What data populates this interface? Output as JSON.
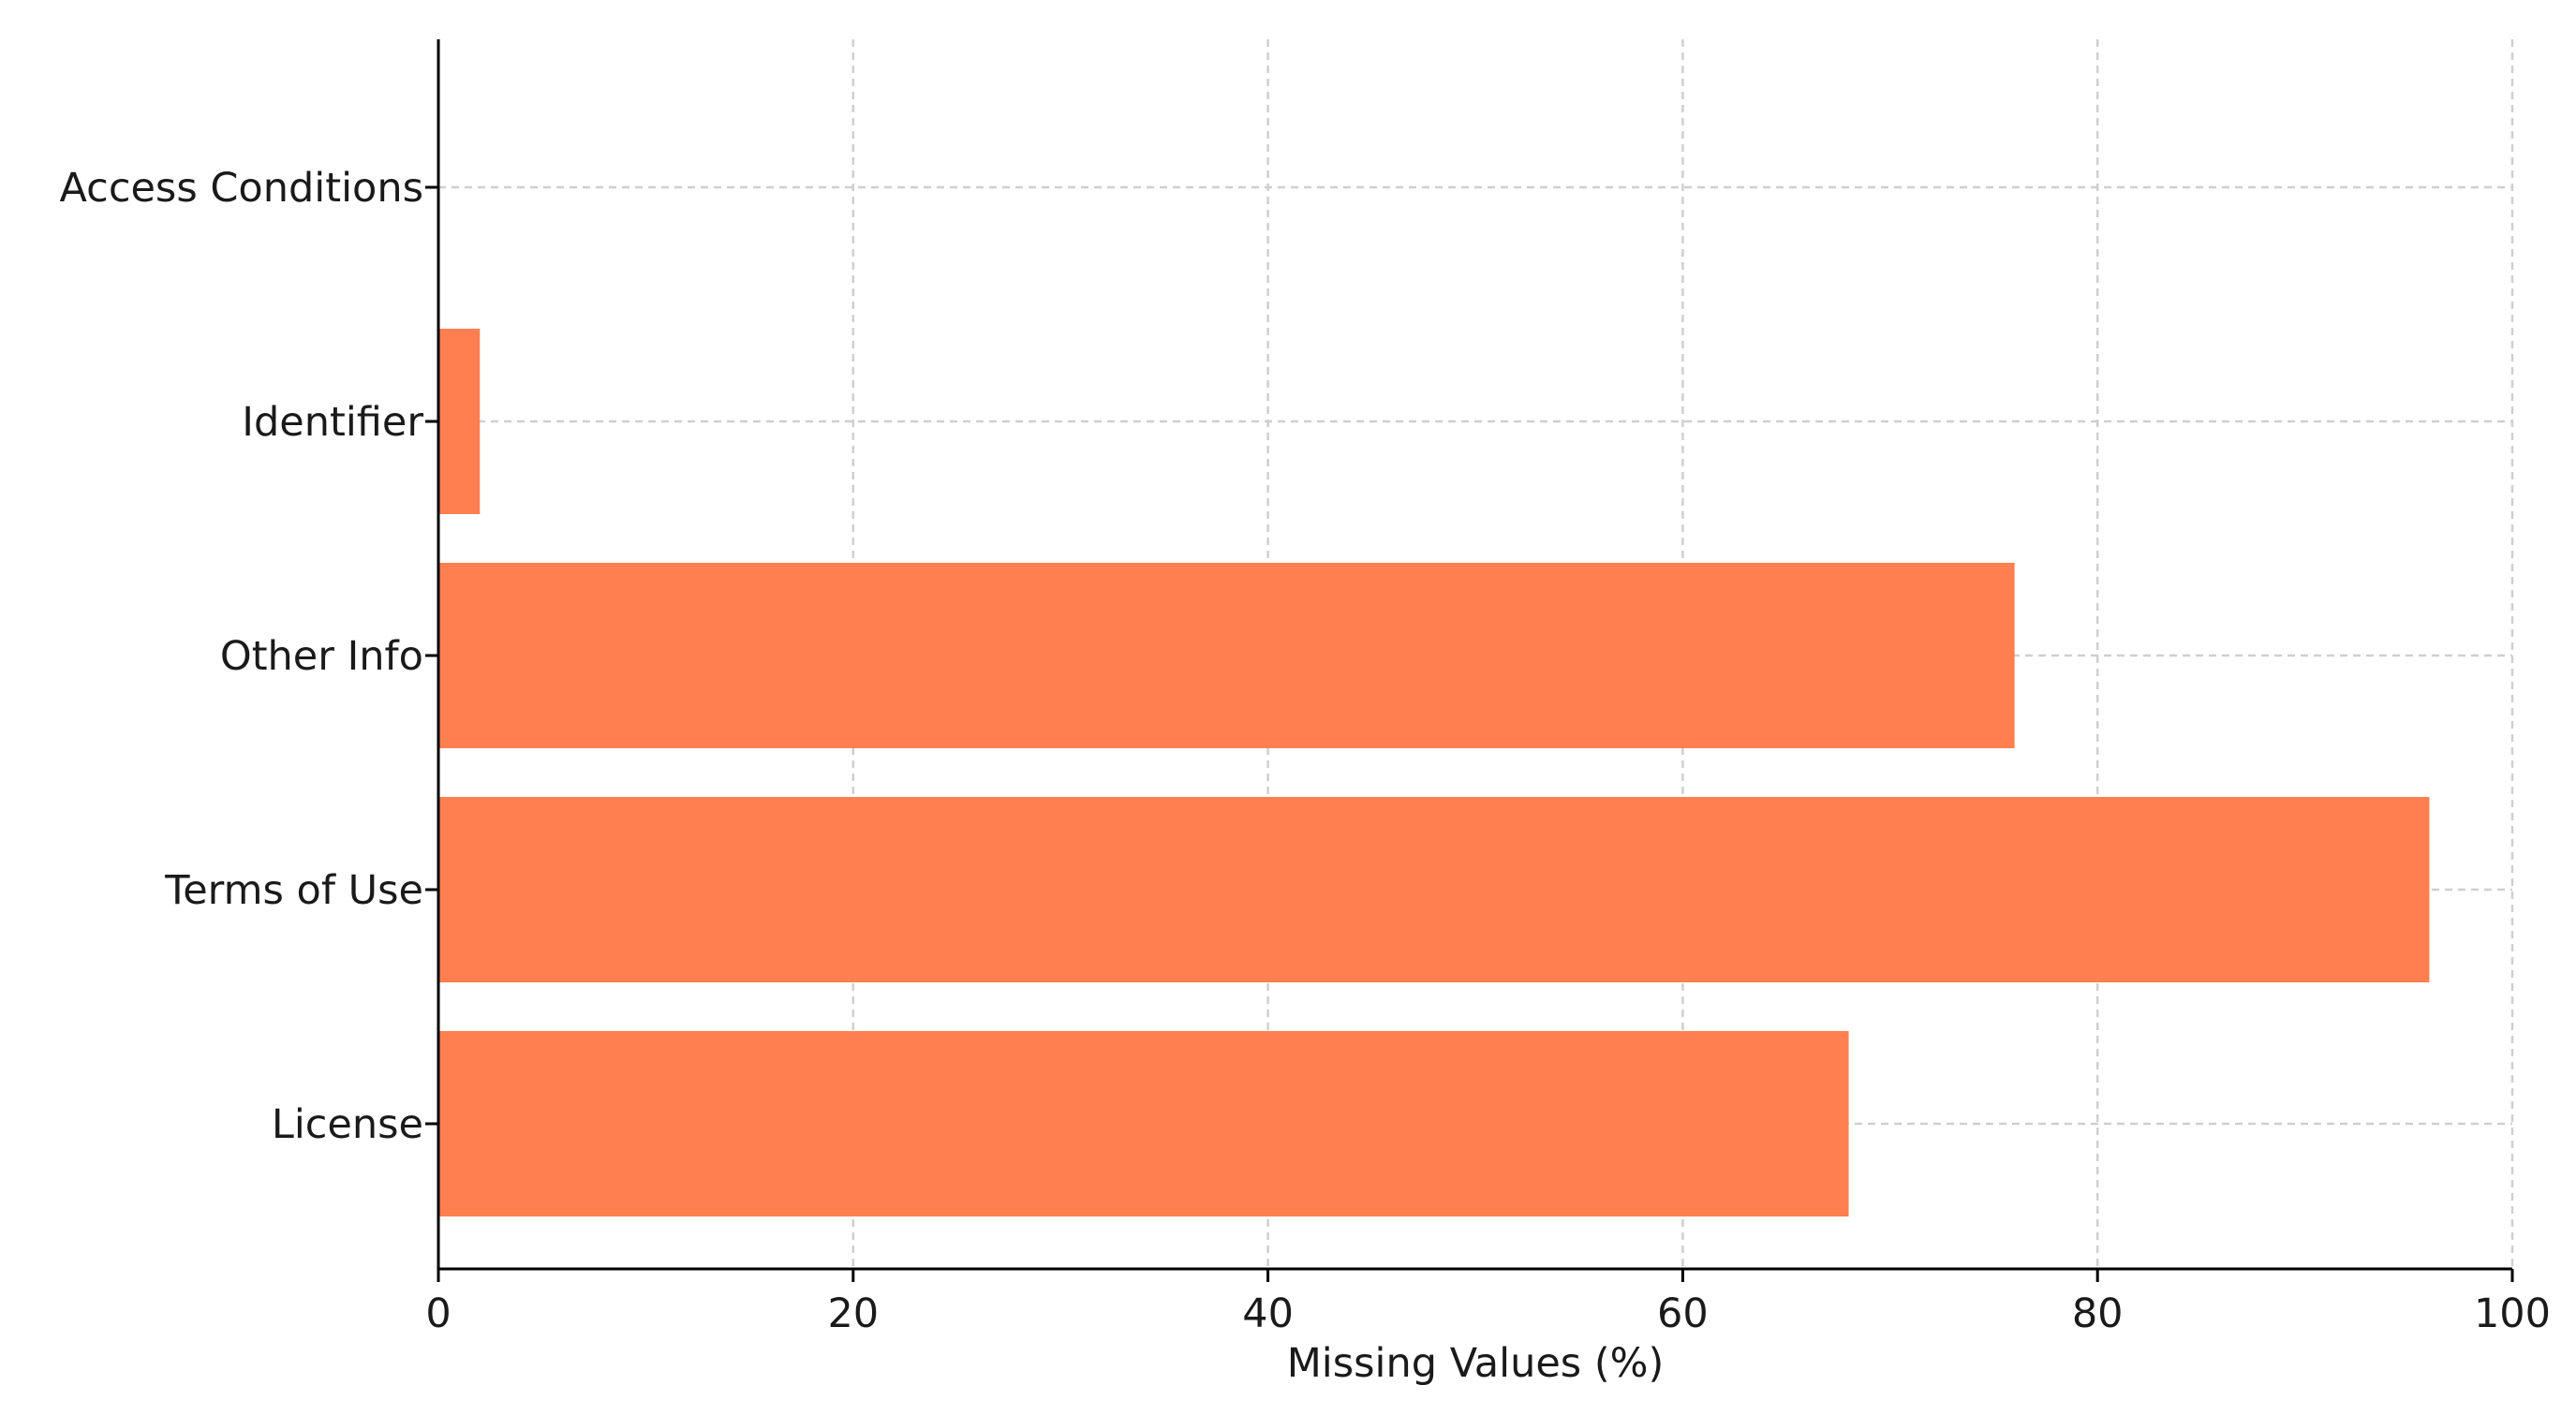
{
  "chart_data": {
    "type": "bar",
    "orientation": "horizontal",
    "categories": [
      "License",
      "Terms of Use",
      "Other Info",
      "Identifier",
      "Access Conditions"
    ],
    "values": [
      68,
      96,
      76,
      2,
      0
    ],
    "title": "",
    "xlabel": "Missing Values (%)",
    "ylabel": "",
    "xlim": [
      0,
      100
    ],
    "xticks": [
      0,
      20,
      40,
      60,
      80,
      100
    ],
    "grid": true,
    "legend": "none",
    "bar_color": "#ff7f50"
  }
}
